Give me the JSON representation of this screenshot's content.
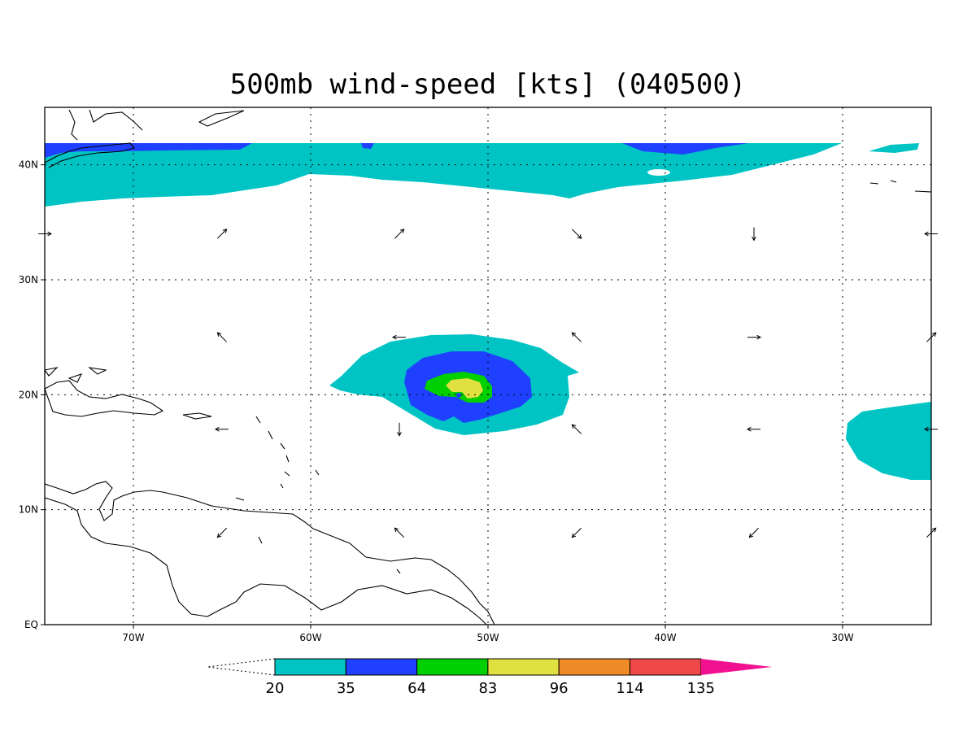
{
  "title": "500mb wind-speed [kts] (040500)",
  "map": {
    "lon_range": [
      -75,
      -25
    ],
    "lat_range": [
      0,
      45
    ],
    "x_ticks": [
      {
        "lon": -70,
        "label": "70W"
      },
      {
        "lon": -60,
        "label": "60W"
      },
      {
        "lon": -50,
        "label": "50W"
      },
      {
        "lon": -40,
        "label": "40W"
      },
      {
        "lon": -30,
        "label": "30W"
      }
    ],
    "y_ticks": [
      {
        "lat": 40,
        "label": "40N"
      },
      {
        "lat": 30,
        "label": "30N"
      },
      {
        "lat": 20,
        "label": "20N"
      },
      {
        "lat": 10,
        "label": "10N"
      },
      {
        "lat": 0,
        "label": "EQ"
      }
    ],
    "grid": "dotted"
  },
  "colorbar": {
    "levels": [
      "20",
      "35",
      "64",
      "83",
      "96",
      "114",
      "135"
    ],
    "colors": [
      "#00c4c4",
      "#2040ff",
      "#00d000",
      "#e0e040",
      "#f08c28",
      "#f04848",
      "#f01090"
    ],
    "open_ends": [
      "left-dashed",
      "right-filled"
    ]
  },
  "wind_speed_regions": [
    {
      "name": "northern jet band",
      "level": "20-35",
      "color": "#00c4c4"
    },
    {
      "name": "northern jet core",
      "level": "35-64",
      "color": "#2040ff"
    },
    {
      "name": "hurricane outer ring",
      "level": "20-35",
      "color": "#00c4c4"
    },
    {
      "name": "hurricane middle ring",
      "level": "35-64",
      "color": "#2040ff"
    },
    {
      "name": "hurricane inner ring",
      "level": "64-83",
      "color": "#00d000"
    },
    {
      "name": "hurricane core",
      "level": "83-96",
      "color": "#e0e040"
    },
    {
      "name": "eastern wind patch",
      "level": "20-35",
      "color": "#00c4c4"
    }
  ],
  "wind_vectors": [
    {
      "lon": -75,
      "lat": 34,
      "dir": "east"
    },
    {
      "lon": -65,
      "lat": 34,
      "dir": "northeast"
    },
    {
      "lon": -55,
      "lat": 34,
      "dir": "northeast"
    },
    {
      "lon": -45,
      "lat": 34,
      "dir": "southeast"
    },
    {
      "lon": -35,
      "lat": 34,
      "dir": "south"
    },
    {
      "lon": -25,
      "lat": 34,
      "dir": "west"
    },
    {
      "lon": -65,
      "lat": 25,
      "dir": "northwest"
    },
    {
      "lon": -55,
      "lat": 25,
      "dir": "west"
    },
    {
      "lon": -45,
      "lat": 25,
      "dir": "northwest"
    },
    {
      "lon": -35,
      "lat": 25,
      "dir": "east"
    },
    {
      "lon": -25,
      "lat": 25,
      "dir": "northeast"
    },
    {
      "lon": -65,
      "lat": 17,
      "dir": "west"
    },
    {
      "lon": -55,
      "lat": 17,
      "dir": "south"
    },
    {
      "lon": -45,
      "lat": 17,
      "dir": "northwest"
    },
    {
      "lon": -35,
      "lat": 17,
      "dir": "west"
    },
    {
      "lon": -25,
      "lat": 17,
      "dir": "west"
    },
    {
      "lon": -65,
      "lat": 8,
      "dir": "southwest"
    },
    {
      "lon": -55,
      "lat": 8,
      "dir": "northwest"
    },
    {
      "lon": -45,
      "lat": 8,
      "dir": "southwest"
    },
    {
      "lon": -35,
      "lat": 8,
      "dir": "southwest"
    },
    {
      "lon": -25,
      "lat": 8,
      "dir": "northeast"
    }
  ]
}
